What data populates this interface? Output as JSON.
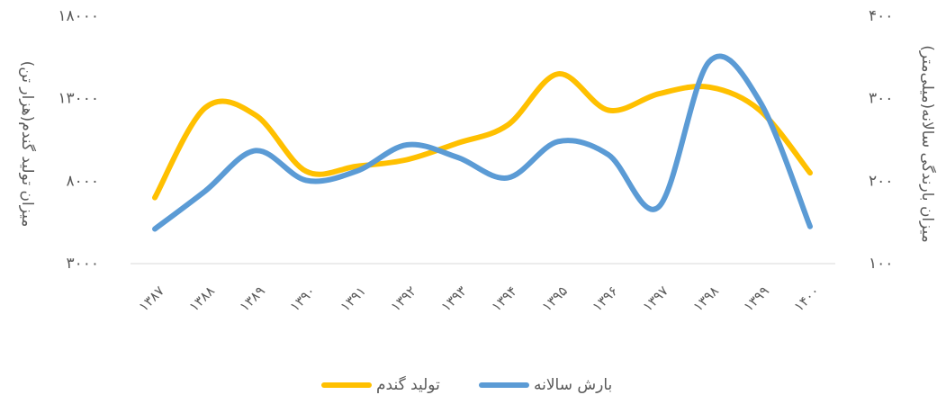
{
  "chart_data": {
    "type": "line",
    "y_label": "میزان تولید گندم(هزار تن)",
    "y2_label": "میزان بارندگی سالانه(میلی‌متر)",
    "categories": [
      "۱۳۸۷",
      "۱۳۸۸",
      "۱۳۸۹",
      "۱۳۹۰",
      "۱۳۹۱",
      "۱۳۹۲",
      "۱۳۹۳",
      "۱۳۹۴",
      "۱۳۹۵",
      "۱۳۹۶",
      "۱۳۹۷",
      "۱۳۹۸",
      "۱۳۹۹",
      "۱۴۰۰"
    ],
    "series": [
      {
        "name": "تولید گندم",
        "color": "#ffc000",
        "values": [
          7000,
          12450,
          12000,
          8600,
          8900,
          9300,
          10300,
          11400,
          14500,
          12300,
          13300,
          13700,
          12300,
          8500
        ]
      },
      {
        "name": "بارش سالانه",
        "color": "#5b9bd5",
        "axis": "y2",
        "values": [
          142,
          188,
          237,
          201,
          212,
          244,
          229,
          204,
          248,
          232,
          169,
          345,
          297,
          145
        ]
      }
    ],
    "ylim": [
      3000,
      18000
    ],
    "yticks": [
      {
        "value": 3000,
        "label": "۳۰۰۰"
      },
      {
        "value": 8000,
        "label": "۸۰۰۰"
      },
      {
        "value": 13000,
        "label": "۱۳۰۰۰"
      },
      {
        "value": 18000,
        "label": "۱۸۰۰۰"
      }
    ],
    "y2lim": [
      100,
      400
    ],
    "y2ticks": [
      {
        "value": 100,
        "label": "۱۰۰"
      },
      {
        "value": 200,
        "label": "۲۰۰"
      },
      {
        "value": 300,
        "label": "۳۰۰"
      },
      {
        "value": 400,
        "label": "۴۰۰"
      }
    ],
    "legend": "bottom"
  }
}
